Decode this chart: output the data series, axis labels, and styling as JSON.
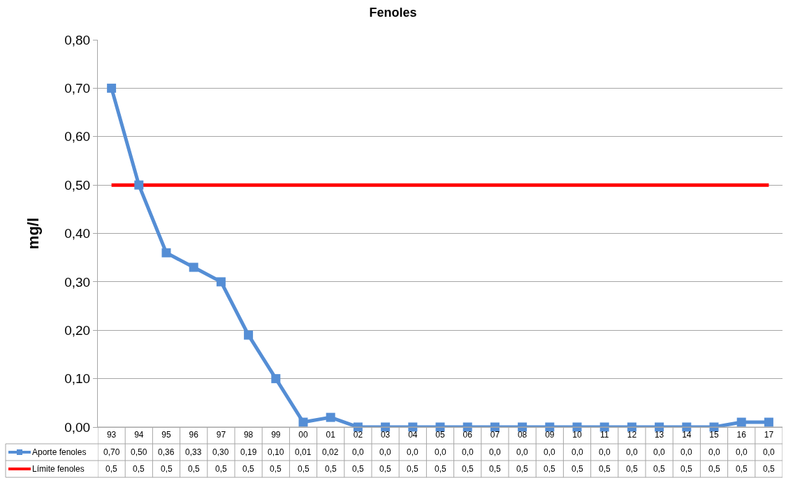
{
  "chart_data": {
    "type": "line",
    "title": "Fenoles",
    "ylabel": "mg/l",
    "categories": [
      "93",
      "94",
      "95",
      "96",
      "97",
      "98",
      "99",
      "00",
      "01",
      "02",
      "03",
      "04",
      "05",
      "06",
      "07",
      "08",
      "09",
      "10",
      "11",
      "12",
      "13",
      "14",
      "15",
      "16",
      "17"
    ],
    "series": [
      {
        "name": "Aporte fenoles",
        "color": "#558ed5",
        "marker": "square",
        "values": [
          0.7,
          0.5,
          0.36,
          0.33,
          0.3,
          0.19,
          0.1,
          0.01,
          0.02,
          0.0,
          0.0,
          0.0,
          0.0,
          0.0,
          0.0,
          0.0,
          0.0,
          0.0,
          0.0,
          0.0,
          0.0,
          0.0,
          0.0,
          0.01,
          0.01
        ],
        "value_labels": [
          "0,70",
          "0,50",
          "0,36",
          "0,33",
          "0,30",
          "0,19",
          "0,10",
          "0,01",
          "0,02",
          "0,0",
          "0,0",
          "0,0",
          "0,0",
          "0,0",
          "0,0",
          "0,0",
          "0,0",
          "0,0",
          "0,0",
          "0,0",
          "0,0",
          "0,0",
          "0,0",
          "0,0",
          "0,0"
        ]
      },
      {
        "name": "Límite fenoles",
        "color": "#ff0000",
        "marker": "none",
        "values": [
          0.5,
          0.5,
          0.5,
          0.5,
          0.5,
          0.5,
          0.5,
          0.5,
          0.5,
          0.5,
          0.5,
          0.5,
          0.5,
          0.5,
          0.5,
          0.5,
          0.5,
          0.5,
          0.5,
          0.5,
          0.5,
          0.5,
          0.5,
          0.5,
          0.5
        ],
        "value_labels": [
          "0,5",
          "0,5",
          "0,5",
          "0,5",
          "0,5",
          "0,5",
          "0,5",
          "0,5",
          "0,5",
          "0,5",
          "0,5",
          "0,5",
          "0,5",
          "0,5",
          "0,5",
          "0,5",
          "0,5",
          "0,5",
          "0,5",
          "0,5",
          "0,5",
          "0,5",
          "0,5",
          "0,5",
          "0,5"
        ]
      }
    ],
    "ylim": [
      0,
      0.8
    ],
    "yticks": [
      {
        "value": 0,
        "label": "0,00"
      },
      {
        "value": 0.1,
        "label": "0,10"
      },
      {
        "value": 0.2,
        "label": "0,20"
      },
      {
        "value": 0.3,
        "label": "0,30"
      },
      {
        "value": 0.4,
        "label": "0,40"
      },
      {
        "value": 0.5,
        "label": "0,50"
      },
      {
        "value": 0.6,
        "label": "0,60"
      },
      {
        "value": 0.7,
        "label": "0,70"
      },
      {
        "value": 0.8,
        "label": "0,80"
      }
    ],
    "grid": "y",
    "legend": "bottom",
    "line_style": "solid"
  }
}
